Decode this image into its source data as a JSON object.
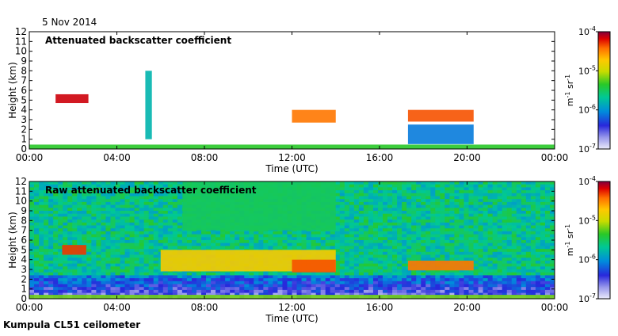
{
  "date_label": "5 Nov 2014",
  "instrument_label": "Kumpula CL51 ceilometer",
  "chart_data": [
    {
      "type": "heatmap",
      "title": "Attenuated backscatter coefficient",
      "xlabel": "Time (UTC)",
      "ylabel": "Height (km)",
      "x_ticks": [
        "00:00",
        "04:00",
        "08:00",
        "12:00",
        "16:00",
        "20:00",
        "00:00"
      ],
      "xlim_hours": [
        0,
        24
      ],
      "y_ticks": [
        "0",
        "1",
        "2",
        "3",
        "4",
        "5",
        "6",
        "7",
        "8",
        "9",
        "10",
        "11",
        "12"
      ],
      "ylim_km": [
        0,
        12
      ],
      "colorbar": {
        "scale": "log",
        "range": [
          1e-07,
          0.0001
        ],
        "tick_labels": [
          "10",
          "10",
          "10",
          "10"
        ],
        "tick_exponents": [
          "-7",
          "-6",
          "-5",
          "-4"
        ],
        "label_base": "m",
        "label_exp1": "-1",
        "label_mid": " sr",
        "label_exp2": "-1"
      },
      "features": [
        {
          "t0": 0.0,
          "t1": 24.0,
          "h0": 0.0,
          "h1": 0.45,
          "level": 0.55
        },
        {
          "t0": 1.2,
          "t1": 2.7,
          "h0": 4.7,
          "h1": 5.6,
          "level": 0.95
        },
        {
          "t0": 12.0,
          "t1": 14.0,
          "h0": 2.7,
          "h1": 4.0,
          "level": 0.85
        },
        {
          "t0": 17.3,
          "t1": 20.3,
          "h0": 2.8,
          "h1": 4.0,
          "level": 0.88
        },
        {
          "t0": 17.3,
          "t1": 20.3,
          "h0": 0.5,
          "h1": 2.5,
          "level": 0.3
        },
        {
          "t0": 5.3,
          "t1": 5.6,
          "h0": 1.0,
          "h1": 8.0,
          "level": 0.4
        }
      ]
    },
    {
      "type": "heatmap",
      "title": "Raw attenuated backscatter coefficient",
      "xlabel": "Time (UTC)",
      "ylabel": "Height (km)",
      "x_ticks": [
        "00:00",
        "04:00",
        "08:00",
        "12:00",
        "16:00",
        "20:00",
        "00:00"
      ],
      "xlim_hours": [
        0,
        24
      ],
      "y_ticks": [
        "0",
        "1",
        "2",
        "3",
        "4",
        "5",
        "6",
        "7",
        "8",
        "9",
        "10",
        "11",
        "12"
      ],
      "ylim_km": [
        0,
        12
      ],
      "colorbar": {
        "scale": "log",
        "range": [
          1e-07,
          0.0001
        ],
        "tick_labels": [
          "10",
          "10",
          "10",
          "10"
        ],
        "tick_exponents": [
          "-7",
          "-6",
          "-5",
          "-4"
        ],
        "label_base": "m",
        "label_exp1": "-1",
        "label_mid": " sr",
        "label_exp2": "-1"
      },
      "features": [
        {
          "t0": 0.0,
          "t1": 24.0,
          "h0": 0.0,
          "h1": 0.4,
          "level": 0.6
        },
        {
          "t0": 1.5,
          "t1": 2.6,
          "h0": 4.5,
          "h1": 5.5,
          "level": 0.9
        },
        {
          "t0": 6.0,
          "t1": 14.0,
          "h0": 2.8,
          "h1": 5.0,
          "level": 0.75
        },
        {
          "t0": 12.0,
          "t1": 14.0,
          "h0": 2.7,
          "h1": 4.0,
          "level": 0.88
        },
        {
          "t0": 17.3,
          "t1": 20.3,
          "h0": 2.9,
          "h1": 3.9,
          "level": 0.85
        },
        {
          "t0": 7.0,
          "t1": 14.0,
          "h0": 7.0,
          "h1": 12.0,
          "level": 0.5
        }
      ]
    }
  ]
}
